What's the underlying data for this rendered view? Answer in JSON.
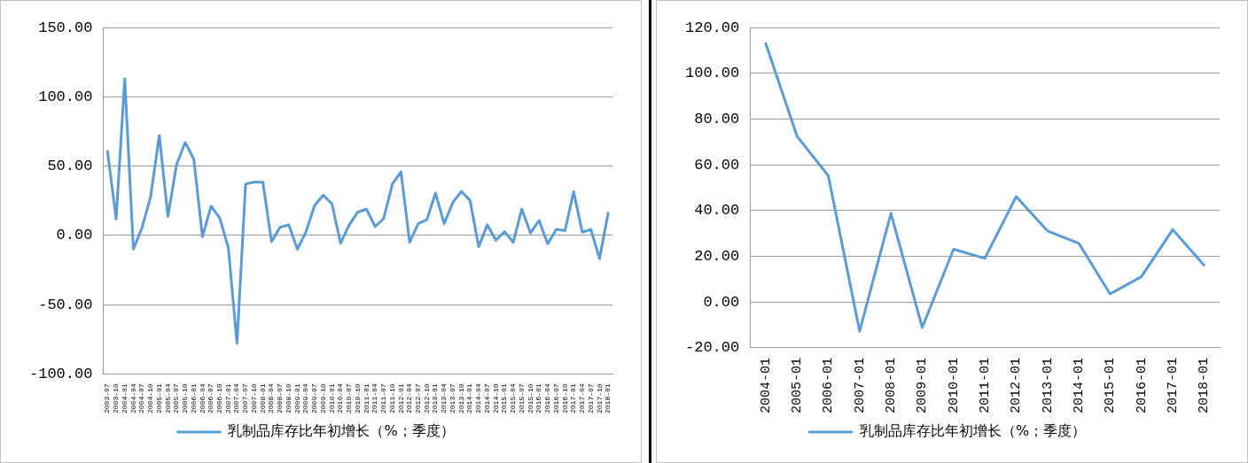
{
  "chart_data": [
    {
      "type": "line",
      "categories": [
        "2003-07",
        "2003-10",
        "2004-01",
        "2004-04",
        "2004-07",
        "2004-10",
        "2005-01",
        "2005-04",
        "2005-07",
        "2005-10",
        "2006-01",
        "2006-04",
        "2006-07",
        "2006-10",
        "2007-01",
        "2007-04",
        "2007-07",
        "2007-10",
        "2008-01",
        "2008-04",
        "2008-07",
        "2008-10",
        "2009-01",
        "2009-04",
        "2009-07",
        "2009-10",
        "2010-01",
        "2010-04",
        "2010-07",
        "2010-10",
        "2011-01",
        "2011-04",
        "2011-07",
        "2011-10",
        "2012-01",
        "2012-04",
        "2012-07",
        "2012-10",
        "2013-01",
        "2013-04",
        "2013-07",
        "2013-10",
        "2014-01",
        "2014-04",
        "2014-07",
        "2014-10",
        "2015-01",
        "2015-04",
        "2015-07",
        "2015-10",
        "2016-01",
        "2016-04",
        "2016-07",
        "2016-10",
        "2017-01",
        "2017-04",
        "2017-07",
        "2017-10",
        "2018-01"
      ],
      "series": [
        {
          "name": "乳制品库存比年初增长（%；季度）",
          "color": "#5b9bd5",
          "values": [
            60.5,
            11.8,
            113,
            -10,
            5.5,
            28,
            72,
            13.7,
            51,
            67,
            55,
            -1,
            21,
            12.6,
            -9,
            -78,
            37,
            38.4,
            38.4,
            -4.6,
            5.9,
            7.6,
            -10,
            2.7,
            21.6,
            29,
            22.7,
            -5.7,
            7.6,
            16.8,
            18.9,
            6.3,
            12.2,
            37,
            45.8,
            -5,
            8.4,
            11.3,
            30.5,
            8.4,
            23.7,
            31.7,
            25.2,
            -8.2,
            7.6,
            -3.6,
            2.7,
            -5,
            18.9,
            1.7,
            10.7,
            -6.1,
            4.4,
            3.4,
            31.5,
            2.3,
            4.2,
            -16.8,
            16
          ]
        }
      ],
      "ylim": [
        -100,
        150
      ],
      "yticks": [
        {
          "value": -100,
          "label": "-100.00"
        },
        {
          "value": -50,
          "label": "-50.00"
        },
        {
          "value": 0,
          "label": "0.00"
        },
        {
          "value": 50,
          "label": "50.00"
        },
        {
          "value": 100,
          "label": "100.00"
        },
        {
          "value": 150,
          "label": "150.00"
        }
      ],
      "grid": "y",
      "legend": "bottom",
      "marker": "none"
    },
    {
      "type": "line",
      "categories": [
        "2004-01",
        "2005-01",
        "2006-01",
        "2007-01",
        "2008-01",
        "2009-01",
        "2010-01",
        "2011-01",
        "2012-01",
        "2013-01",
        "2014-01",
        "2015-01",
        "2016-01",
        "2017-01",
        "2018-01"
      ],
      "series": [
        {
          "name": "乳制品库存比年初增长（%；季度）",
          "color": "#5b9bd5",
          "values": [
            113,
            72.5,
            55.2,
            -12.7,
            38.8,
            -11.1,
            23.1,
            19.1,
            46.1,
            31.1,
            25.7,
            3.6,
            11.1,
            31.7,
            16.2
          ]
        }
      ],
      "ylim": [
        -20,
        120
      ],
      "yticks": [
        {
          "value": -20,
          "label": "-20.00"
        },
        {
          "value": 0,
          "label": "0.00"
        },
        {
          "value": 20,
          "label": "20.00"
        },
        {
          "value": 40,
          "label": "40.00"
        },
        {
          "value": 60,
          "label": "60.00"
        },
        {
          "value": 80,
          "label": "80.00"
        },
        {
          "value": 100,
          "label": "100.00"
        },
        {
          "value": 120,
          "label": "120.00"
        }
      ],
      "grid": "y",
      "legend": "bottom",
      "marker": "none"
    }
  ]
}
